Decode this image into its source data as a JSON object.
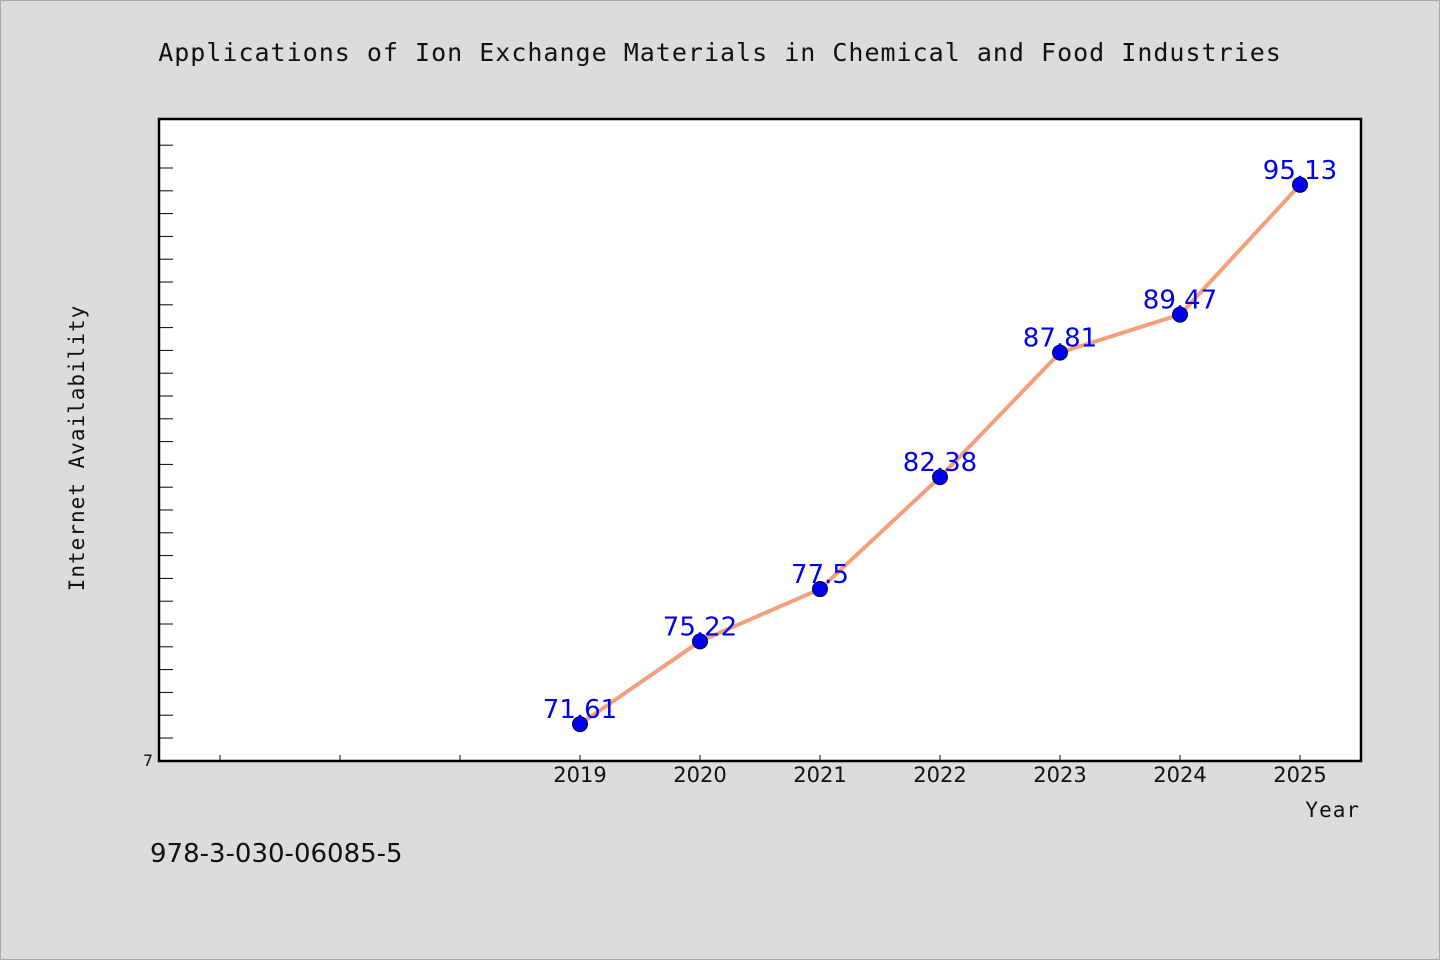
{
  "chart_data": {
    "type": "line",
    "title": "Applications of Ion Exchange Materials in Chemical and Food Industries",
    "xlabel": "Year",
    "ylabel": "Internet Availability",
    "categories": [
      "2019",
      "2020",
      "2021",
      "2022",
      "2023",
      "2024",
      "2025"
    ],
    "series": [
      {
        "values": [
          71.61,
          75.22,
          77.5,
          82.38,
          87.81,
          89.47,
          95.13
        ],
        "data_labels": [
          "71.61",
          "75.22",
          "77.5",
          "82.38",
          "87.81",
          "89.47",
          "95.13"
        ],
        "line_color": "#f4a07c",
        "marker_color": "#0000ee"
      }
    ],
    "y_tick_labels": [
      "7"
    ],
    "ylim": [
      70,
      98
    ],
    "x_category_slots": 10,
    "grid": false,
    "label_color": "#0000ee"
  },
  "footer": {
    "isbn": "978-3-030-06085-5"
  }
}
